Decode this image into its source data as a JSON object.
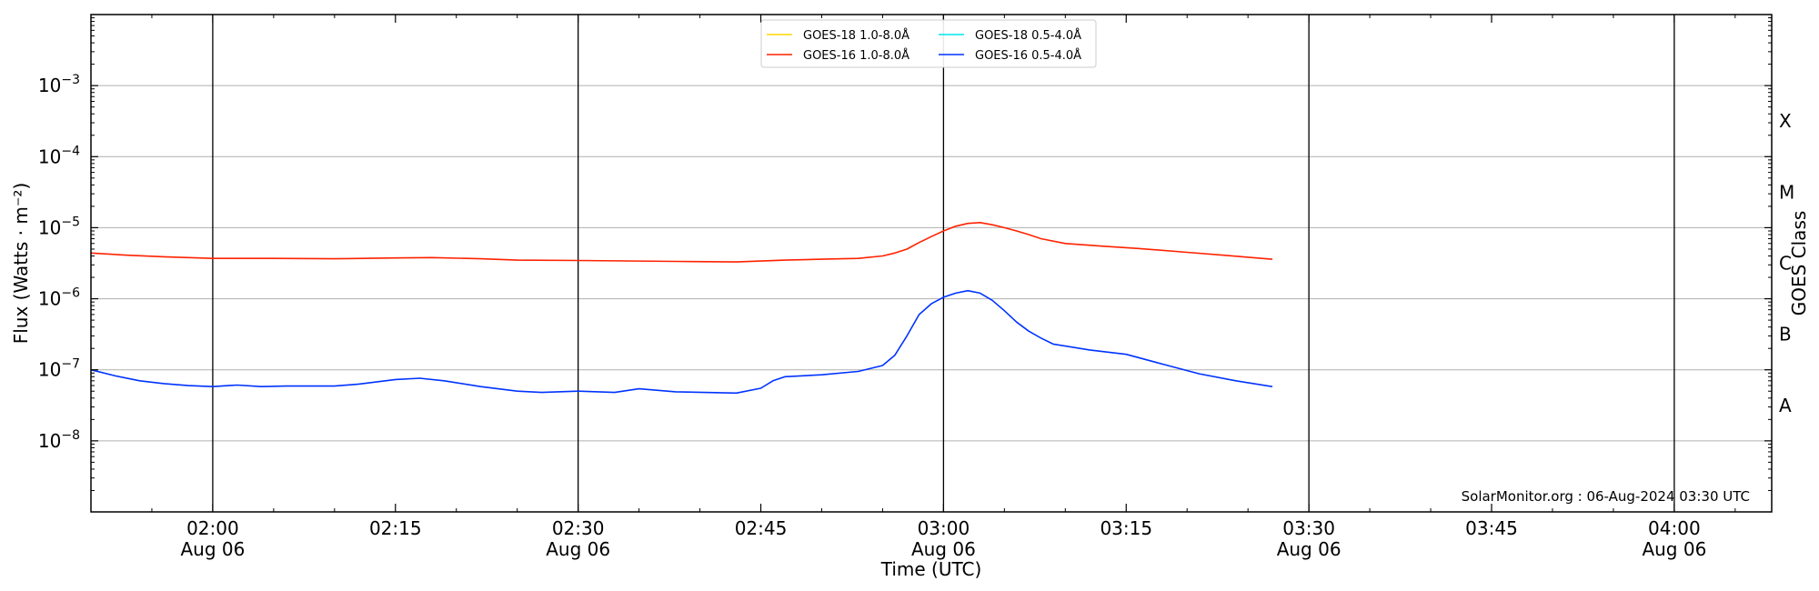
{
  "chart_data": {
    "type": "line",
    "xlabel": "Time (UTC)",
    "ylabel": "Flux (Watts · m⁻²)",
    "ylabel_right": "GOES Class",
    "y_scale": "log",
    "ylim": [
      1e-09,
      0.01
    ],
    "xlim": [
      "01:50",
      "04:08"
    ],
    "y_ticks": [
      {
        "value": 1e-08,
        "base": "10",
        "exp": "−8"
      },
      {
        "value": 1e-07,
        "base": "10",
        "exp": "−7"
      },
      {
        "value": 1e-06,
        "base": "10",
        "exp": "−6"
      },
      {
        "value": 1e-05,
        "base": "10",
        "exp": "−5"
      },
      {
        "value": 0.0001,
        "base": "10",
        "exp": "−4"
      },
      {
        "value": 0.001,
        "base": "10",
        "exp": "−3"
      }
    ],
    "x_ticks": [
      {
        "time": "02:00",
        "line1": "02:00",
        "line2": "Aug 06",
        "major": true
      },
      {
        "time": "02:15",
        "line1": "02:15",
        "line2": "",
        "major": false
      },
      {
        "time": "02:30",
        "line1": "02:30",
        "line2": "Aug 06",
        "major": true
      },
      {
        "time": "02:45",
        "line1": "02:45",
        "line2": "",
        "major": false
      },
      {
        "time": "03:00",
        "line1": "03:00",
        "line2": "Aug 06",
        "major": true
      },
      {
        "time": "03:15",
        "line1": "03:15",
        "line2": "",
        "major": false
      },
      {
        "time": "03:30",
        "line1": "03:30",
        "line2": "Aug 06",
        "major": true
      },
      {
        "time": "03:45",
        "line1": "03:45",
        "line2": "",
        "major": false
      },
      {
        "time": "04:00",
        "line1": "04:00",
        "line2": "Aug 06",
        "major": true
      }
    ],
    "goes_classes": [
      {
        "label": "A",
        "low": 1e-08,
        "high": 1e-07
      },
      {
        "label": "B",
        "low": 1e-07,
        "high": 1e-06
      },
      {
        "label": "C",
        "low": 1e-06,
        "high": 1e-05
      },
      {
        "label": "M",
        "low": 1e-05,
        "high": 0.0001
      },
      {
        "label": "X",
        "low": 0.0001,
        "high": 0.001
      }
    ],
    "grid": true,
    "legend_position": "top-center",
    "credit": "SolarMonitor.org : 06-Aug-2024 03:30 UTC",
    "series": [
      {
        "name": "GOES-18 1.0-8.0Å",
        "color": "#ffd700",
        "points": []
      },
      {
        "name": "GOES-18 0.5-4.0Å",
        "color": "#00e5ee",
        "points": []
      },
      {
        "name": "GOES-16 1.0-8.0Å",
        "color": "#ff2200",
        "points": [
          [
            "01:50",
            4.4e-06
          ],
          [
            "01:53",
            4.1e-06
          ],
          [
            "01:56",
            3.9e-06
          ],
          [
            "02:00",
            3.7e-06
          ],
          [
            "02:05",
            3.7e-06
          ],
          [
            "02:10",
            3.65e-06
          ],
          [
            "02:15",
            3.75e-06
          ],
          [
            "02:18",
            3.8e-06
          ],
          [
            "02:22",
            3.65e-06
          ],
          [
            "02:25",
            3.5e-06
          ],
          [
            "02:30",
            3.45e-06
          ],
          [
            "02:34",
            3.4e-06
          ],
          [
            "02:38",
            3.35e-06
          ],
          [
            "02:43",
            3.3e-06
          ],
          [
            "02:47",
            3.5e-06
          ],
          [
            "02:50",
            3.6e-06
          ],
          [
            "02:53",
            3.7e-06
          ],
          [
            "02:55",
            4e-06
          ],
          [
            "02:56",
            4.4e-06
          ],
          [
            "02:57",
            5e-06
          ],
          [
            "02:58",
            6.2e-06
          ],
          [
            "02:59",
            7.5e-06
          ],
          [
            "03:00",
            9e-06
          ],
          [
            "03:01",
            1.05e-05
          ],
          [
            "03:02",
            1.15e-05
          ],
          [
            "03:03",
            1.18e-05
          ],
          [
            "03:04",
            1.1e-05
          ],
          [
            "03:05",
            1e-05
          ],
          [
            "03:06",
            9e-06
          ],
          [
            "03:07",
            8e-06
          ],
          [
            "03:08",
            7e-06
          ],
          [
            "03:10",
            6e-06
          ],
          [
            "03:13",
            5.5e-06
          ],
          [
            "03:16",
            5.1e-06
          ],
          [
            "03:20",
            4.5e-06
          ],
          [
            "03:23",
            4.1e-06
          ],
          [
            "03:27",
            3.6e-06
          ]
        ]
      },
      {
        "name": "GOES-16 0.5-4.0Å",
        "color": "#0033ff",
        "points": [
          [
            "01:50",
            1e-07
          ],
          [
            "01:52",
            8.2e-08
          ],
          [
            "01:54",
            7e-08
          ],
          [
            "01:56",
            6.4e-08
          ],
          [
            "01:58",
            6e-08
          ],
          [
            "02:00",
            5.8e-08
          ],
          [
            "02:02",
            6.1e-08
          ],
          [
            "02:04",
            5.8e-08
          ],
          [
            "02:06",
            5.9e-08
          ],
          [
            "02:10",
            5.9e-08
          ],
          [
            "02:12",
            6.3e-08
          ],
          [
            "02:15",
            7.3e-08
          ],
          [
            "02:17",
            7.6e-08
          ],
          [
            "02:19",
            7e-08
          ],
          [
            "02:22",
            5.8e-08
          ],
          [
            "02:25",
            5e-08
          ],
          [
            "02:27",
            4.8e-08
          ],
          [
            "02:30",
            5e-08
          ],
          [
            "02:33",
            4.8e-08
          ],
          [
            "02:35",
            5.4e-08
          ],
          [
            "02:38",
            4.9e-08
          ],
          [
            "02:43",
            4.7e-08
          ],
          [
            "02:45",
            5.5e-08
          ],
          [
            "02:46",
            7e-08
          ],
          [
            "02:47",
            8e-08
          ],
          [
            "02:50",
            8.5e-08
          ],
          [
            "02:53",
            9.5e-08
          ],
          [
            "02:55",
            1.15e-07
          ],
          [
            "02:56",
            1.6e-07
          ],
          [
            "02:57",
            3e-07
          ],
          [
            "02:58",
            6e-07
          ],
          [
            "02:59",
            8.5e-07
          ],
          [
            "03:00",
            1.05e-06
          ],
          [
            "03:01",
            1.2e-06
          ],
          [
            "03:02",
            1.3e-06
          ],
          [
            "03:03",
            1.2e-06
          ],
          [
            "03:04",
            9.5e-07
          ],
          [
            "03:05",
            6.8e-07
          ],
          [
            "03:06",
            4.7e-07
          ],
          [
            "03:07",
            3.5e-07
          ],
          [
            "03:08",
            2.8e-07
          ],
          [
            "03:09",
            2.3e-07
          ],
          [
            "03:12",
            1.9e-07
          ],
          [
            "03:15",
            1.65e-07
          ],
          [
            "03:18",
            1.2e-07
          ],
          [
            "03:21",
            8.8e-08
          ],
          [
            "03:24",
            7e-08
          ],
          [
            "03:27",
            5.8e-08
          ]
        ]
      }
    ]
  }
}
